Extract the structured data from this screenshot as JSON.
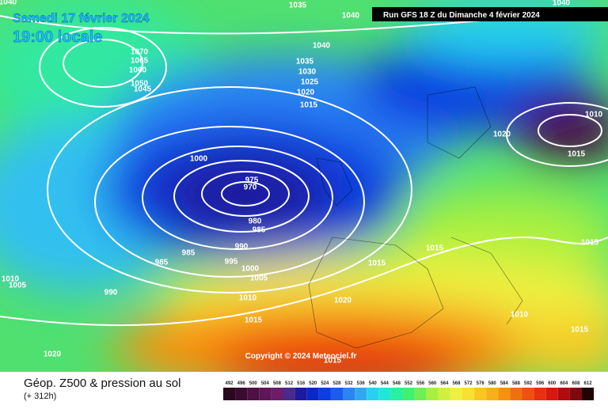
{
  "header": {
    "date": "Samedi 17 février 2024",
    "time": "19:00 locale",
    "run": "Run GFS 18 Z du Dimanche 4 février 2024"
  },
  "isobars": [
    "1040",
    "1035",
    "1040",
    "1040",
    "1070",
    "1065",
    "1060",
    "1050",
    "1045",
    "1040",
    "1035",
    "1030",
    "1025",
    "1020",
    "1015",
    "1010",
    "1020",
    "1015",
    "1000",
    "975",
    "970",
    "980",
    "985",
    "985",
    "985",
    "990",
    "995",
    "1000",
    "1005",
    "990",
    "1015",
    "1015",
    "1015",
    "1010",
    "1005",
    "1010",
    "1020",
    "1015",
    "1010",
    "1015",
    "1020",
    "1015"
  ],
  "copyright": "Copyright © 2024 Meteociel.fr",
  "footer": {
    "title": "Géop. Z500 & pression au sol",
    "lead": "(+ 312h)"
  },
  "colorbar": {
    "values": [
      492,
      496,
      500,
      504,
      508,
      512,
      516,
      520,
      524,
      528,
      532,
      536,
      540,
      544,
      548,
      552,
      556,
      560,
      564,
      568,
      572,
      576,
      580,
      584,
      588,
      592,
      596,
      600,
      604,
      608,
      612
    ],
    "colors": [
      "#2a0820",
      "#3a0c30",
      "#4c1042",
      "#5e1656",
      "#6e1c6a",
      "#4a2a8a",
      "#1e1aa0",
      "#0a28c8",
      "#0a3ee0",
      "#1a5cf0",
      "#2a84f4",
      "#30a8f0",
      "#28d0f0",
      "#20e8d8",
      "#28f0a0",
      "#40f070",
      "#70f050",
      "#a8f040",
      "#d0f040",
      "#f0f040",
      "#f8e030",
      "#f8c820",
      "#f8b018",
      "#f89010",
      "#f07010",
      "#f05010",
      "#e83010",
      "#d81810",
      "#b00c10",
      "#800810",
      "#200404"
    ]
  }
}
